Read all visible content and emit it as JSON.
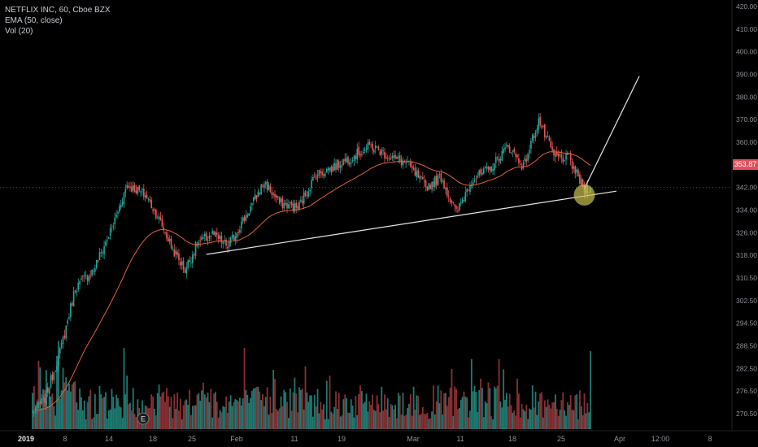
{
  "legend": {
    "symbol": "NETFLIX INC, 60, Cboe BZX",
    "ema": "EMA (50, close)",
    "volume": "Vol (20)"
  },
  "current_price": "353.87",
  "colors": {
    "background": "#000000",
    "up": "#26a69a",
    "down": "#ef5350",
    "vol_up": "#1f7a72",
    "vol_down": "#8a2f33",
    "ema": "#e0603c",
    "trendline": "#e6e6e6",
    "price_tag": "#e04f5f",
    "highlight": "#c9c24b",
    "axis_text": "#8c8f96"
  },
  "chart_data": {
    "type": "candlestick",
    "title": "NETFLIX INC, 60, Cboe BZX",
    "y_ticks": [
      "420.00",
      "410.00",
      "400.00",
      "390.00",
      "380.00",
      "370.00",
      "360.00",
      "350.00",
      "342.00",
      "334.00",
      "326.00",
      "318.00",
      "310.50",
      "302.50",
      "294.50",
      "288.50",
      "282.50",
      "276.50",
      "270.50"
    ],
    "x_ticks": [
      "2019",
      "8",
      "14",
      "18",
      "25",
      "Feb",
      "11",
      "19",
      "Mar",
      "11",
      "18",
      "25",
      "Apr",
      "12:00",
      "8"
    ],
    "ylim": [
      266,
      424
    ],
    "price_path": [
      {
        "i": 0,
        "p": 267
      },
      {
        "i": 8,
        "p": 272
      },
      {
        "i": 18,
        "p": 290
      },
      {
        "i": 28,
        "p": 315
      },
      {
        "i": 40,
        "p": 322
      },
      {
        "i": 52,
        "p": 338
      },
      {
        "i": 62,
        "p": 355
      },
      {
        "i": 74,
        "p": 351
      },
      {
        "i": 82,
        "p": 343
      },
      {
        "i": 92,
        "p": 330
      },
      {
        "i": 100,
        "p": 322
      },
      {
        "i": 108,
        "p": 332
      },
      {
        "i": 118,
        "p": 336
      },
      {
        "i": 128,
        "p": 331
      },
      {
        "i": 140,
        "p": 343
      },
      {
        "i": 152,
        "p": 356
      },
      {
        "i": 162,
        "p": 348
      },
      {
        "i": 174,
        "p": 346
      },
      {
        "i": 186,
        "p": 359
      },
      {
        "i": 198,
        "p": 362
      },
      {
        "i": 210,
        "p": 366
      },
      {
        "i": 222,
        "p": 370
      },
      {
        "i": 234,
        "p": 366
      },
      {
        "i": 246,
        "p": 363
      },
      {
        "i": 258,
        "p": 354
      },
      {
        "i": 268,
        "p": 358
      },
      {
        "i": 278,
        "p": 344
      },
      {
        "i": 288,
        "p": 357
      },
      {
        "i": 300,
        "p": 361
      },
      {
        "i": 312,
        "p": 370
      },
      {
        "i": 322,
        "p": 362
      },
      {
        "i": 332,
        "p": 380
      },
      {
        "i": 342,
        "p": 366
      },
      {
        "i": 352,
        "p": 365
      },
      {
        "i": 362,
        "p": 353
      },
      {
        "i": 366,
        "p": 354
      }
    ],
    "candle_count": 367,
    "ema_period": 50,
    "current_price": 353.87,
    "trendline": {
      "start": [
        114,
        328
      ],
      "end": [
        383,
        352.5
      ]
    },
    "projection": {
      "start": [
        362,
        353.5
      ],
      "end": [
        398,
        397
      ]
    },
    "highlight": {
      "at": [
        362,
        351
      ]
    }
  }
}
